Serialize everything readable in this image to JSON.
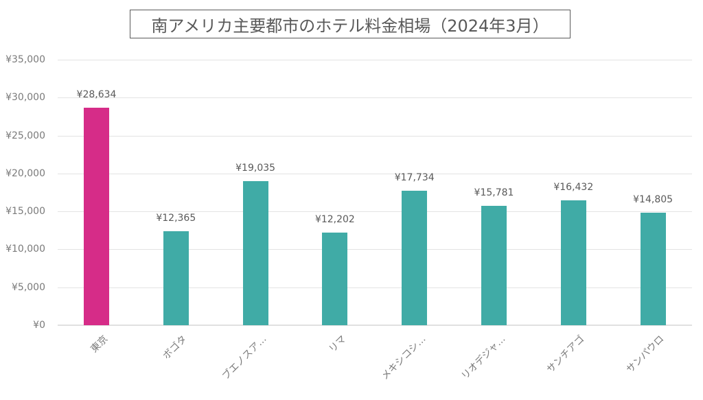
{
  "title": "南アメリカ主要都市のホテル料金相場（2024年3月）",
  "colors": {
    "highlight": "#D62C88",
    "default": "#40ABA6",
    "gridline": "#E3E3E3",
    "text": "#595959"
  },
  "y_axis": {
    "ticks": [
      "¥0",
      "¥5,000",
      "¥10,000",
      "¥15,000",
      "¥20,000",
      "¥25,000",
      "¥30,000",
      "¥35,000"
    ]
  },
  "bars": [
    {
      "category": "東京",
      "value": 28634,
      "label": "¥28,634",
      "highlight": true
    },
    {
      "category": "ボゴタ",
      "value": 12365,
      "label": "¥12,365",
      "highlight": false
    },
    {
      "category": "ブエノスア…",
      "value": 19035,
      "label": "¥19,035",
      "highlight": false
    },
    {
      "category": "リマ",
      "value": 12202,
      "label": "¥12,202",
      "highlight": false
    },
    {
      "category": "メキシコシ…",
      "value": 17734,
      "label": "¥17,734",
      "highlight": false
    },
    {
      "category": "リオデジャ…",
      "value": 15781,
      "label": "¥15,781",
      "highlight": false
    },
    {
      "category": "サンチアゴ",
      "value": 16432,
      "label": "¥16,432",
      "highlight": false
    },
    {
      "category": "サンパウロ",
      "value": 14805,
      "label": "¥14,805",
      "highlight": false
    }
  ],
  "chart_data": {
    "type": "bar",
    "title": "南アメリカ主要都市のホテル料金相場（2024年3月）",
    "categories": [
      "東京",
      "ボゴタ",
      "ブエノスア…",
      "リマ",
      "メキシコシ…",
      "リオデジャ…",
      "サンチアゴ",
      "サンパウロ"
    ],
    "values": [
      28634,
      12365,
      19035,
      12202,
      17734,
      15781,
      16432,
      14805
    ],
    "data_labels": [
      "¥28,634",
      "¥12,365",
      "¥19,035",
      "¥12,202",
      "¥17,734",
      "¥15,781",
      "¥16,432",
      "¥14,805"
    ],
    "xlabel": "",
    "ylabel": "",
    "ylim": [
      0,
      35000
    ],
    "yticks": [
      0,
      5000,
      10000,
      15000,
      20000,
      25000,
      30000,
      35000
    ],
    "ytick_labels": [
      "¥0",
      "¥5,000",
      "¥10,000",
      "¥15,000",
      "¥20,000",
      "¥25,000",
      "¥30,000",
      "¥35,000"
    ],
    "grid": true,
    "legend": null,
    "bar_colors": [
      "#D62C88",
      "#40ABA6",
      "#40ABA6",
      "#40ABA6",
      "#40ABA6",
      "#40ABA6",
      "#40ABA6",
      "#40ABA6"
    ]
  }
}
